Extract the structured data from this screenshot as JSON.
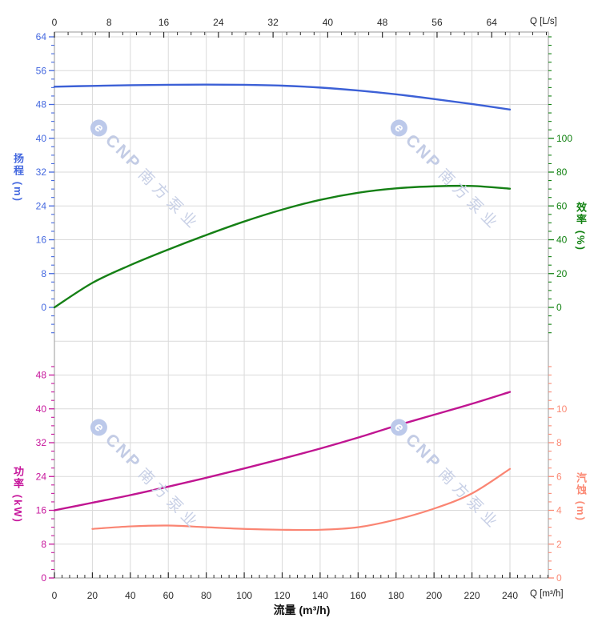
{
  "watermark": {
    "brand": "CNP",
    "name": "南方泵业"
  },
  "chart_data": {
    "type": "line",
    "title": "",
    "legend": "none",
    "grid": {
      "show": true,
      "color": "#DADADA",
      "border_color": "#ABABAB"
    },
    "x_axis_bottom": {
      "title": "流量 (m³/h)",
      "unit_label": "Q [m³/h]",
      "min": 0,
      "max": 260,
      "major_step": 20,
      "minor_step": 4,
      "label_max": 240,
      "tick_color": "#2b2b2b",
      "labels": [
        0,
        20,
        40,
        60,
        80,
        100,
        120,
        140,
        160,
        180,
        200,
        220,
        240
      ]
    },
    "x_axis_top": {
      "unit_label": "Q [L/s]",
      "min": 0,
      "max": 72,
      "major_step": 8,
      "minor_step": 2,
      "label_max": 64,
      "m3h_per_unit": 3.6,
      "tick_color": "#2b2b2b",
      "labels": [
        0,
        8,
        16,
        24,
        32,
        40,
        48,
        56,
        64
      ]
    },
    "y_axes": [
      {
        "id": "head",
        "title": "扬程 (m)",
        "side": "left",
        "region": "upper",
        "color": "#4468DF",
        "label_min": 0,
        "label_max": 64,
        "major_step": 8,
        "minor_step": 2,
        "minor_min": -6,
        "minor_max": 64
      },
      {
        "id": "efficiency",
        "title": "效率 (%)",
        "side": "right",
        "region": "upper",
        "color": "#128212",
        "label_min": 0,
        "label_max": 100,
        "major_step": 20,
        "minor_step": 5,
        "minor_min": -15,
        "minor_max": 160
      },
      {
        "id": "power",
        "title": "功率 (kW)",
        "side": "left",
        "region": "lower",
        "color": "#C7169C",
        "label_min": 0,
        "label_max": 48,
        "major_step": 8,
        "minor_step": 2,
        "minor_min": 2,
        "minor_max": 50
      },
      {
        "id": "npsh",
        "title": "汽蚀 (m)",
        "side": "right",
        "region": "lower",
        "color": "#FB8A75",
        "label_min": 0,
        "label_max": 10,
        "major_step": 2,
        "minor_step": 0.5,
        "minor_min": 0.5,
        "minor_max": 12.5
      }
    ],
    "series": [
      {
        "id": "head",
        "name": "扬程",
        "axis": "head",
        "color": "#3C60D6",
        "width": 2.4,
        "x": [
          0,
          20,
          40,
          60,
          80,
          100,
          120,
          140,
          160,
          180,
          200,
          220,
          240
        ],
        "y": [
          52.2,
          52.4,
          52.55,
          52.65,
          52.7,
          52.65,
          52.45,
          52.0,
          51.3,
          50.4,
          49.3,
          48.1,
          46.8
        ]
      },
      {
        "id": "efficiency",
        "name": "效率",
        "axis": "efficiency",
        "color": "#158015",
        "width": 2.4,
        "x": [
          0,
          20,
          40,
          60,
          80,
          100,
          120,
          140,
          160,
          180,
          200,
          220,
          240
        ],
        "y": [
          0,
          14.5,
          25,
          34.2,
          42.8,
          50.8,
          57.8,
          63.6,
          67.8,
          70.4,
          71.6,
          71.8,
          70.2
        ]
      },
      {
        "id": "power",
        "name": "功率",
        "axis": "power",
        "color": "#C01591",
        "width": 2.4,
        "x": [
          0,
          20,
          40,
          60,
          80,
          100,
          120,
          140,
          160,
          180,
          200,
          220,
          240
        ],
        "y": [
          16,
          17.8,
          19.6,
          21.6,
          23.7,
          25.9,
          28.2,
          30.6,
          33.2,
          36,
          38.6,
          41.2,
          44
        ]
      },
      {
        "id": "npsh",
        "name": "汽蚀",
        "axis": "npsh",
        "color": "#FA8573",
        "width": 2.2,
        "x": [
          20,
          40,
          60,
          80,
          100,
          120,
          140,
          160,
          180,
          200,
          220,
          240
        ],
        "y": [
          2.9,
          3.05,
          3.1,
          3.0,
          2.9,
          2.85,
          2.85,
          3.0,
          3.45,
          4.1,
          5.0,
          6.45
        ]
      }
    ]
  }
}
